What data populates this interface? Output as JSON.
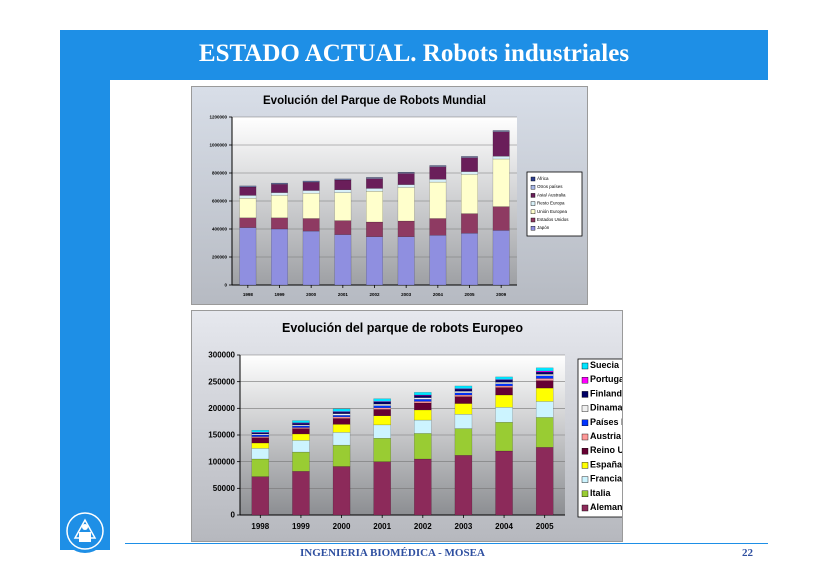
{
  "slide": {
    "title": "ESTADO ACTUAL. Robots industriales",
    "footer": "INGENIERIA BIOMÉDICA - MOSEA",
    "page_number": "22"
  },
  "colors": {
    "brand_blue": "#1e8fe6",
    "footer_text": "#2e4fa0"
  },
  "chart_data": [
    {
      "type": "bar",
      "stacked": true,
      "title": "Evolución del Parque de Robots Mundial",
      "xlabel": "",
      "ylabel": "",
      "categories": [
        "1998",
        "1999",
        "2000",
        "2001",
        "2002",
        "2003",
        "2004",
        "2005",
        "2009"
      ],
      "ylim": [
        0,
        1200000
      ],
      "yticks": [
        0,
        200000,
        400000,
        600000,
        800000,
        1000000,
        1200000
      ],
      "ytick_labels": [
        "0",
        "200000",
        "400000",
        "600000",
        "800000",
        "1000000",
        "1200000"
      ],
      "grid": true,
      "legend": "right",
      "series": [
        {
          "name": "Japón",
          "color": "#8f8fe0",
          "values": [
            410000,
            400000,
            385000,
            360000,
            345000,
            345000,
            355000,
            370000,
            390000
          ]
        },
        {
          "name": "Estados Unidos",
          "color": "#8e3a62",
          "values": [
            70000,
            80000,
            90000,
            100000,
            105000,
            112000,
            120000,
            140000,
            170000
          ]
        },
        {
          "name": "Unión Europea",
          "color": "#ffffcc",
          "values": [
            140000,
            160000,
            180000,
            200000,
            220000,
            240000,
            260000,
            280000,
            340000
          ]
        },
        {
          "name": "Resto Europa",
          "color": "#d8f0f8",
          "values": [
            20000,
            20000,
            20000,
            20000,
            20000,
            20000,
            20000,
            20000,
            20000
          ]
        },
        {
          "name": "Asia/ Australia",
          "color": "#6a1e5a",
          "values": [
            60000,
            60000,
            60000,
            70000,
            70000,
            80000,
            90000,
            100000,
            175000
          ]
        },
        {
          "name": "Otros países",
          "color": "#a8b8e8",
          "values": [
            5000,
            5000,
            5000,
            5000,
            5000,
            5000,
            5000,
            5000,
            5000
          ]
        },
        {
          "name": "África",
          "color": "#2e3e8e",
          "values": [
            3000,
            3000,
            3000,
            3000,
            3000,
            3000,
            3000,
            3000,
            3000
          ]
        }
      ]
    },
    {
      "type": "bar",
      "stacked": true,
      "title": "Evolución del parque de robots Europeo",
      "xlabel": "",
      "ylabel": "",
      "categories": [
        "1998",
        "1999",
        "2000",
        "2001",
        "2002",
        "2003",
        "2004",
        "2005"
      ],
      "ylim": [
        0,
        300000
      ],
      "yticks": [
        0,
        50000,
        100000,
        150000,
        200000,
        250000,
        300000
      ],
      "ytick_labels": [
        "0",
        "50000",
        "100000",
        "150000",
        "200000",
        "250000",
        "300000"
      ],
      "grid": true,
      "legend": "right",
      "series": [
        {
          "name": "Alemania",
          "color": "#8c2a5a",
          "values": [
            72000,
            82000,
            91000,
            100000,
            105000,
            112000,
            120000,
            127000
          ]
        },
        {
          "name": "Italia",
          "color": "#99cc33",
          "values": [
            33000,
            36000,
            40000,
            44000,
            48000,
            50000,
            54000,
            56000
          ]
        },
        {
          "name": "Francia",
          "color": "#ccf4ff",
          "values": [
            20000,
            22000,
            24000,
            25000,
            25000,
            27000,
            28000,
            30000
          ]
        },
        {
          "name": "España",
          "color": "#ffff00",
          "values": [
            10000,
            12000,
            15000,
            17000,
            19000,
            20000,
            23000,
            25000
          ]
        },
        {
          "name": "Reino Unido",
          "color": "#660033",
          "values": [
            10000,
            10000,
            11000,
            12000,
            13000,
            13000,
            14000,
            14000
          ]
        },
        {
          "name": "Austria",
          "color": "#ff9999",
          "values": [
            2000,
            2000,
            3000,
            3000,
            3000,
            3000,
            3000,
            4000
          ]
        },
        {
          "name": "Países bajos",
          "color": "#0033ff",
          "values": [
            3000,
            3000,
            3000,
            4000,
            4000,
            4000,
            4000,
            5000
          ]
        },
        {
          "name": "Dinamarca",
          "color": "#f0f0f0",
          "values": [
            2000,
            2000,
            3000,
            3000,
            3000,
            3000,
            3000,
            3000
          ]
        },
        {
          "name": "Finlandia",
          "color": "#000066",
          "values": [
            2000,
            3000,
            3000,
            4000,
            4000,
            4000,
            4000,
            4000
          ]
        },
        {
          "name": "Portugal",
          "color": "#ff00ff",
          "values": [
            1000,
            1000,
            1000,
            1000,
            1000,
            1000,
            1000,
            2000
          ]
        },
        {
          "name": "Suecia",
          "color": "#00e5ff",
          "values": [
            4000,
            4000,
            5000,
            5000,
            5000,
            5000,
            5000,
            6000
          ]
        }
      ]
    }
  ]
}
